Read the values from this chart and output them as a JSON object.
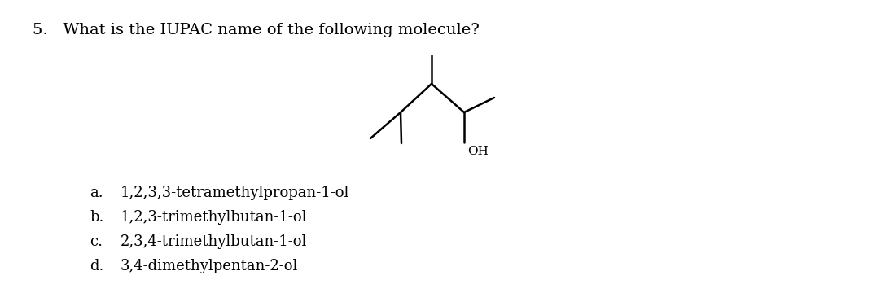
{
  "question": "5.   What is the IUPAC name of the following molecule?",
  "choices": [
    {
      "label": "a.",
      "text": "1,2,3,3-tetramethylpropan-1-ol"
    },
    {
      "label": "b.",
      "text": "1,2,3-trimethylbutan-1-ol"
    },
    {
      "label": "c.",
      "text": "2,3,4-trimethylbutan-1-ol"
    },
    {
      "label": "d.",
      "text": "3,4-dimethylpentan-2-ol"
    }
  ],
  "oh_label": "OH",
  "bg_color": "#ffffff",
  "text_color": "#000000",
  "line_color": "#000000",
  "question_fontsize": 14,
  "choice_fontsize": 13,
  "molecule_linewidth": 1.8
}
